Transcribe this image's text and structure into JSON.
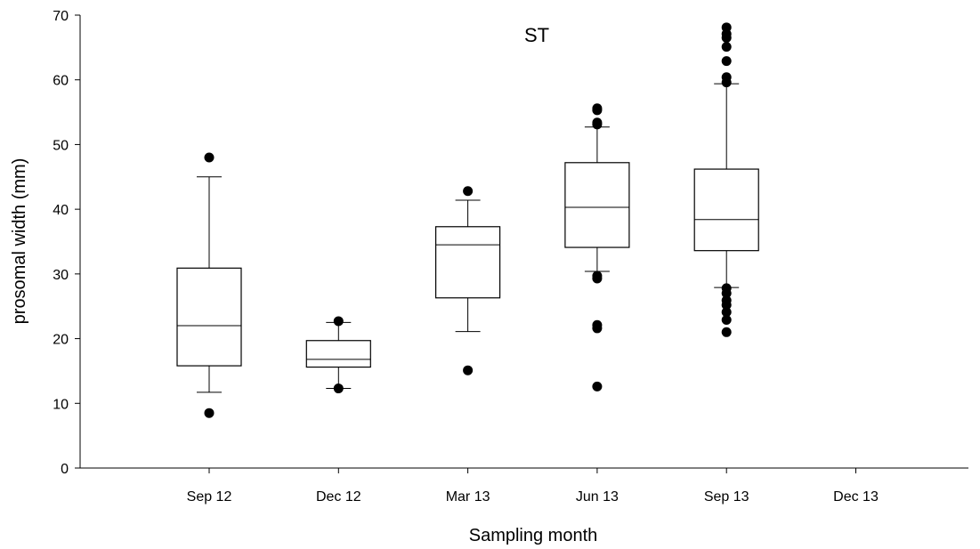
{
  "chart_data": {
    "type": "box",
    "title": "ST",
    "xlabel": "Sampling month",
    "ylabel": "prosomal width (mm)",
    "ylim": [
      0,
      70
    ],
    "yticks": [
      0,
      10,
      20,
      30,
      40,
      50,
      60,
      70
    ],
    "categories": [
      "Sep 12",
      "Dec 12",
      "Mar 13",
      "Jun 13",
      "Sep 13",
      "Dec 13"
    ],
    "grid": false,
    "boxes": [
      {
        "category": "Sep 12",
        "whisker_low": 11.7,
        "q1": 15.8,
        "median": 22.0,
        "q3": 30.9,
        "whisker_high": 45.0,
        "outliers": [
          8.5,
          48.0
        ]
      },
      {
        "category": "Dec 12",
        "whisker_low": 12.3,
        "q1": 15.6,
        "median": 16.8,
        "q3": 19.7,
        "whisker_high": 22.5,
        "outliers": [
          12.3,
          22.7
        ]
      },
      {
        "category": "Mar 13",
        "whisker_low": 21.1,
        "q1": 26.3,
        "median": 34.5,
        "q3": 37.3,
        "whisker_high": 41.4,
        "outliers": [
          15.1,
          42.8
        ]
      },
      {
        "category": "Jun 13",
        "whisker_low": 30.4,
        "q1": 34.1,
        "median": 40.3,
        "q3": 47.2,
        "whisker_high": 52.7,
        "outliers": [
          12.6,
          21.6,
          22.1,
          29.3,
          29.7,
          53.1,
          53.4,
          55.3,
          55.6
        ]
      },
      {
        "category": "Sep 13",
        "whisker_low": 27.9,
        "q1": 33.6,
        "median": 38.4,
        "q3": 46.2,
        "whisker_high": 59.4,
        "outliers": [
          21.0,
          22.9,
          24.1,
          25.2,
          25.9,
          27.0,
          27.8,
          59.6,
          60.4,
          62.9,
          65.1,
          66.5,
          67.1,
          68.1
        ]
      },
      {
        "category": "Dec 13",
        "whisker_low": null,
        "q1": null,
        "median": null,
        "q3": null,
        "whisker_high": null,
        "outliers": []
      }
    ]
  }
}
